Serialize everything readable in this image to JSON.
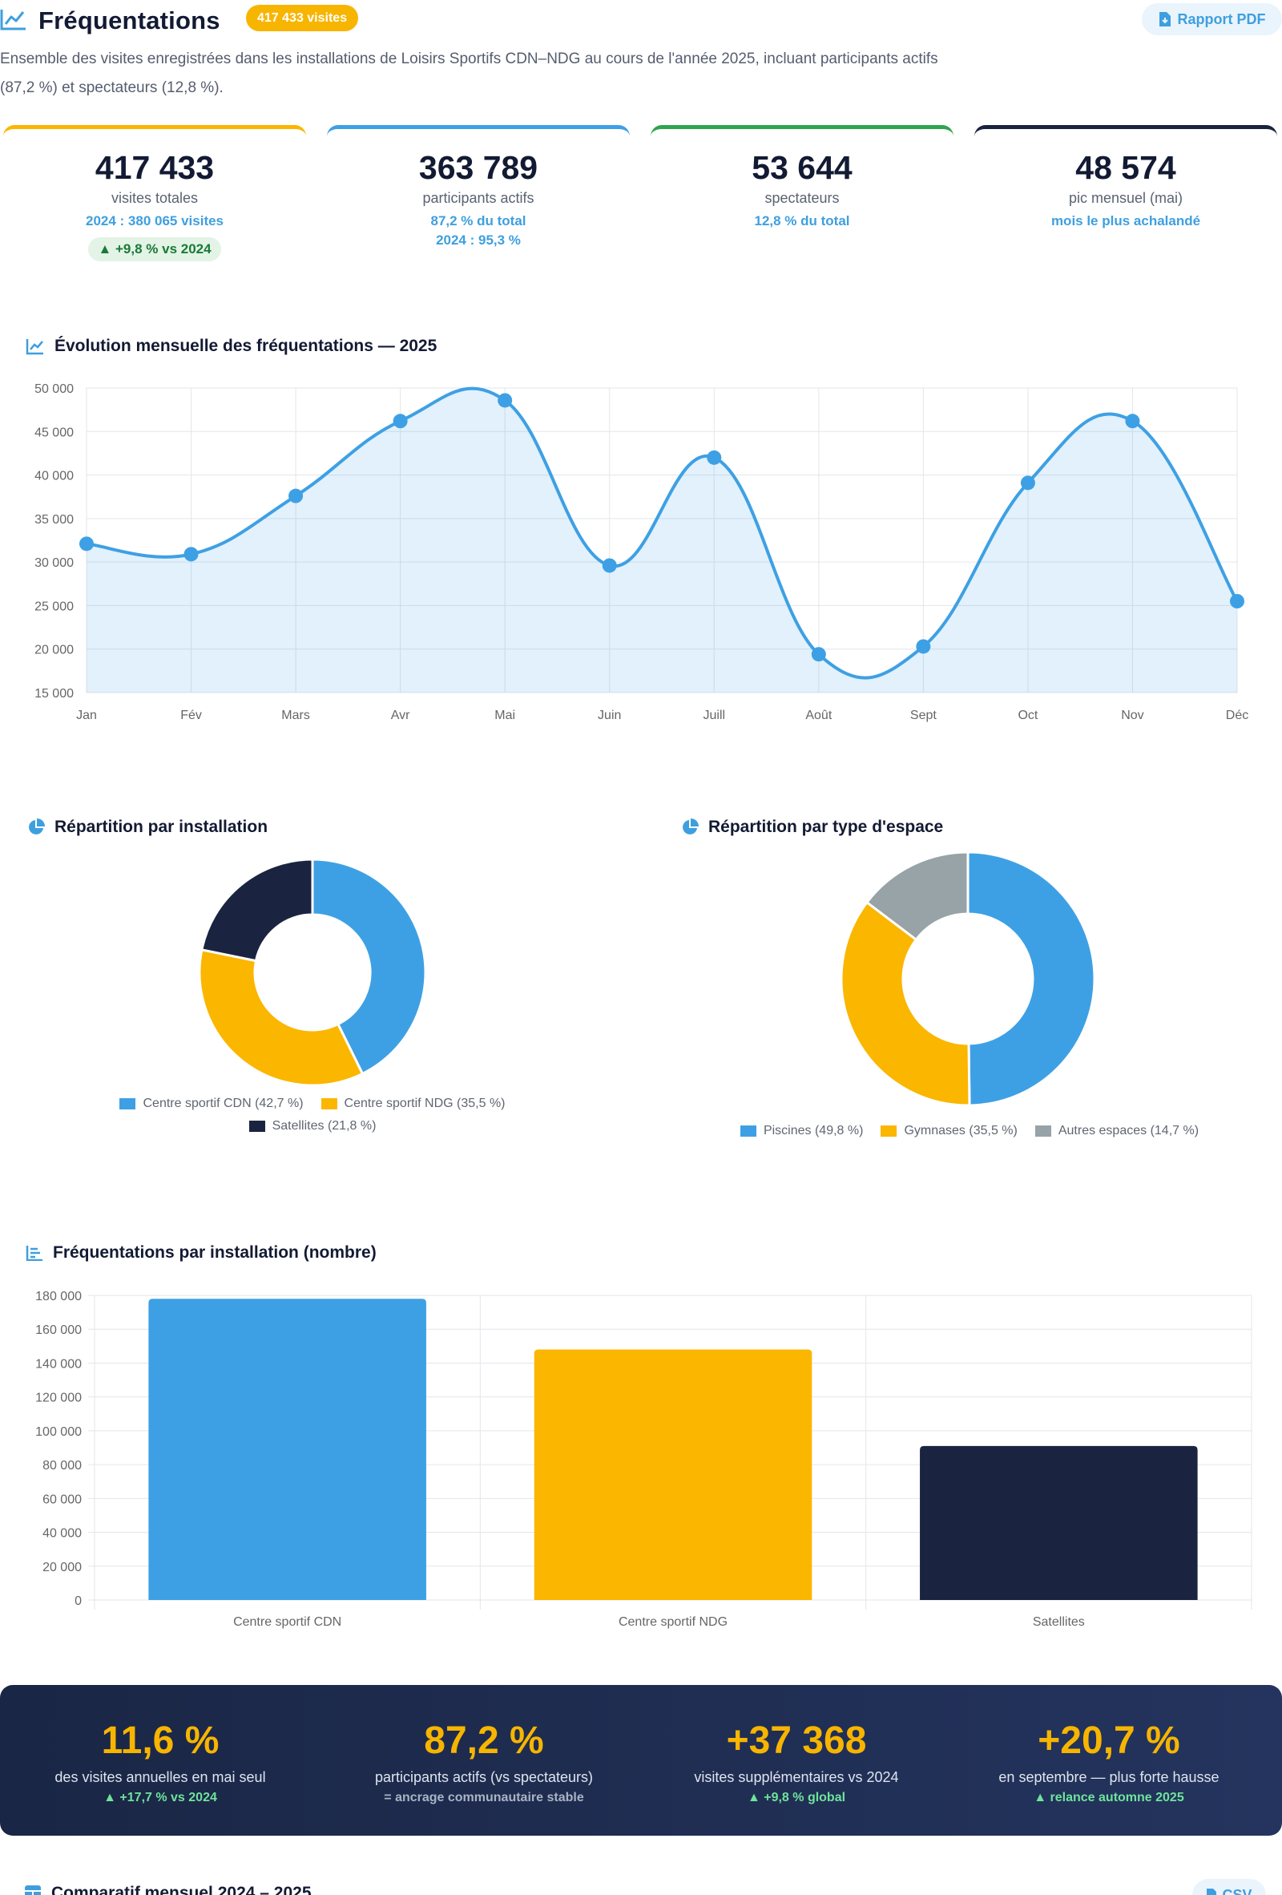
{
  "header": {
    "title": "Fréquentations",
    "badge": "417 433 visites",
    "pdf_label": "Rapport PDF",
    "intro": "Ensemble des visites enregistrées dans les installations de Loisirs Sportifs CDN–NDG au cours de l'année 2025, incluant participants actifs (87,2 %) et spectateurs (12,8 %)."
  },
  "colors": {
    "blue": "#3ea0e4",
    "yellow": "#fbb600",
    "navy": "#1a2440",
    "gray": "#97a3a6",
    "green": "#2ea44f"
  },
  "kpis": [
    {
      "value": "417 433",
      "label": "visites totales",
      "sub1": "2024 : 380 065 visites",
      "sub2": "",
      "chip": "▲ +9,8 % vs 2024"
    },
    {
      "value": "363 789",
      "label": "participants actifs",
      "sub1": "87,2 % du total",
      "sub2": "2024 : 95,3 %",
      "chip": ""
    },
    {
      "value": "53 644",
      "label": "spectateurs",
      "sub1": "12,8 % du total",
      "sub2": "",
      "chip": ""
    },
    {
      "value": "48 574",
      "label": "pic mensuel (mai)",
      "sub1": "mois le plus achalandé",
      "sub2": "",
      "chip": ""
    }
  ],
  "sections": {
    "monthly": "Évolution mensuelle des fréquentations — 2025",
    "by_installation": "Répartition par installation",
    "by_space": "Répartition par type d'espace",
    "bars": "Fréquentations par installation (nombre)",
    "compare": "Comparatif mensuel 2024 – 2025",
    "csv_label": "CSV"
  },
  "chart_data": [
    {
      "type": "area",
      "title": "Évolution mensuelle des fréquentations — 2025",
      "categories": [
        "Jan",
        "Fév",
        "Mars",
        "Avr",
        "Mai",
        "Juin",
        "Juill",
        "Août",
        "Sept",
        "Oct",
        "Nov",
        "Déc"
      ],
      "series": [
        {
          "values": [
            32100,
            30900,
            37600,
            46200,
            48574,
            29600,
            42000,
            19400,
            20300,
            39100,
            46200,
            25500
          ]
        }
      ],
      "ylim": [
        15000,
        50000
      ],
      "yticks": [
        "15 000",
        "20 000",
        "25 000",
        "30 000",
        "35 000",
        "40 000",
        "45 000",
        "50 000"
      ],
      "ytick_values": [
        15000,
        20000,
        25000,
        30000,
        35000,
        40000,
        45000,
        50000
      ],
      "grid": true,
      "color": "#3ea0e4"
    },
    {
      "type": "pie",
      "title": "Répartition par installation",
      "labels": [
        "Centre sportif CDN (42,7 %)",
        "Centre sportif NDG (35,5 %)",
        "Satellites (21,8 %)"
      ],
      "values": [
        42.7,
        35.5,
        21.8
      ],
      "colors": [
        "#3ea0e4",
        "#fbb600",
        "#1a2440"
      ],
      "donut": true
    },
    {
      "type": "pie",
      "title": "Répartition par type d'espace",
      "labels": [
        "Piscines (49,8 %)",
        "Gymnases (35,5 %)",
        "Autres espaces (14,7 %)"
      ],
      "values": [
        49.8,
        35.5,
        14.7
      ],
      "colors": [
        "#3ea0e4",
        "#fbb600",
        "#97a3a6"
      ],
      "donut": true
    },
    {
      "type": "bar",
      "title": "Fréquentations par installation (nombre)",
      "categories": [
        "Centre sportif CDN",
        "Centre sportif NDG",
        "Satellites"
      ],
      "values": [
        178000,
        148000,
        91000
      ],
      "colors": [
        "#3ea0e4",
        "#fbb600",
        "#1a2440"
      ],
      "ylim": [
        0,
        180000
      ],
      "yticks": [
        "0",
        "20 000",
        "40 000",
        "60 000",
        "80 000",
        "100 000",
        "120 000",
        "140 000",
        "160 000",
        "180 000"
      ],
      "ytick_values": [
        0,
        20000,
        40000,
        60000,
        80000,
        100000,
        120000,
        140000,
        160000,
        180000
      ],
      "grid": true
    }
  ],
  "banner": [
    {
      "value": "11,6 %",
      "label": "des visites annuelles en mai seul",
      "sub": "▲ +17,7 % vs 2024"
    },
    {
      "value": "87,2 %",
      "label": "participants actifs (vs spectateurs)",
      "sub": "= ancrage communautaire stable"
    },
    {
      "value": "+37 368",
      "label": "visites supplémentaires vs 2024",
      "sub": "▲ +9,8 % global"
    },
    {
      "value": "+20,7 %",
      "label": "en septembre — plus forte hausse",
      "sub": "▲ relance automne 2025"
    }
  ]
}
